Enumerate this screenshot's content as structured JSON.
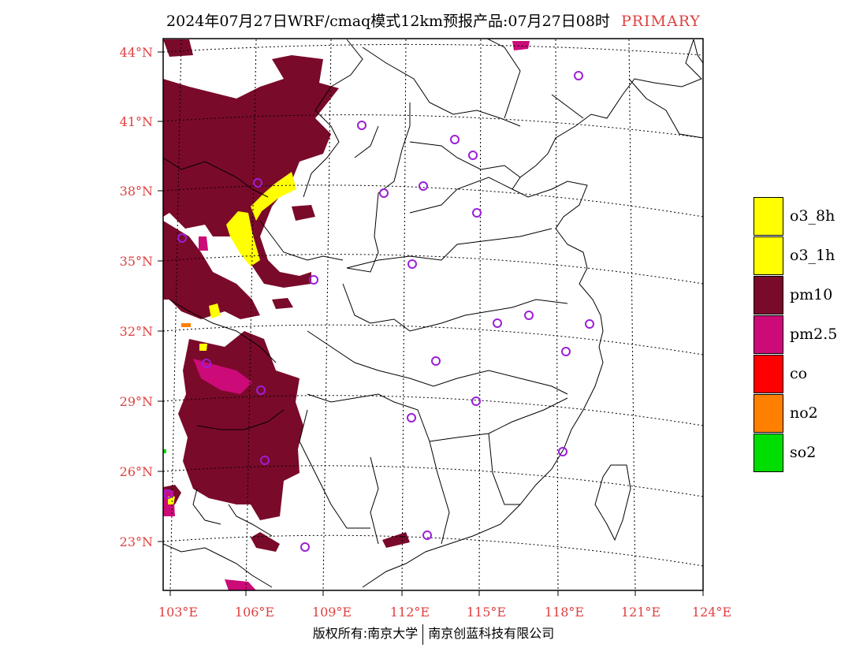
{
  "title": {
    "main": "2024年07月27日WRF/cmaq模式12km预报产品:07月27日08时",
    "tag": "PRIMARY"
  },
  "axes": {
    "lat_labels": [
      "44°N",
      "41°N",
      "38°N",
      "35°N",
      "32°N",
      "29°N",
      "26°N",
      "23°N"
    ],
    "lon_labels": [
      "103°E",
      "106°E",
      "109°E",
      "112°E",
      "115°E",
      "118°E",
      "121°E",
      "124°E"
    ]
  },
  "legend": {
    "items": [
      {
        "label": "o3_8h",
        "color": "#ffff00"
      },
      {
        "label": "o3_1h",
        "color": "#ffff00"
      },
      {
        "label": "pm10",
        "color": "#7a0a2a"
      },
      {
        "label": "pm2.5",
        "color": "#cc0a78"
      },
      {
        "label": "co",
        "color": "#ff0000"
      },
      {
        "label": "no2",
        "color": "#ff7f00"
      },
      {
        "label": "so2",
        "color": "#00dd00"
      }
    ]
  },
  "colors": {
    "pm10": "#7a0a2a",
    "pm25": "#cc0a78",
    "o3": "#ffff00",
    "no2": "#ff7f00",
    "so2": "#00dd00",
    "station": "#9b1fd8",
    "axis_text": "#e04040",
    "grid": "#000000"
  },
  "footer": {
    "left": "版权所有:南京大学",
    "right": "南京创蓝科技有限公司"
  }
}
